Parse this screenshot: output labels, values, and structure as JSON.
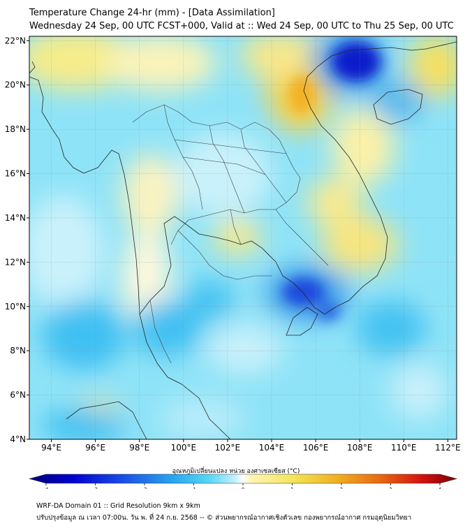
{
  "header": {
    "title": "Temperature Change 24-hr (mm) - [Data Assimilation]",
    "subtitle": "Wednesday 24 Sep, 00 UTC FCST+000, Valid at :: Wed 24 Sep, 00 UTC to Thu 25 Sep, 00 UTC"
  },
  "map": {
    "lat_ticks": [
      "22°N",
      "20°N",
      "18°N",
      "16°N",
      "14°N",
      "12°N",
      "10°N",
      "8°N",
      "6°N",
      "4°N"
    ],
    "lat_values": [
      22,
      20,
      18,
      16,
      14,
      12,
      10,
      8,
      6,
      4
    ],
    "lon_ticks": [
      "94°E",
      "96°E",
      "98°E",
      "100°E",
      "102°E",
      "104°E",
      "106°E",
      "108°E",
      "110°E",
      "112°E"
    ],
    "lon_values": [
      94,
      96,
      98,
      100,
      102,
      104,
      106,
      108,
      110,
      112
    ],
    "lat_range": [
      4,
      22.2
    ],
    "lon_range": [
      93,
      112.4
    ],
    "grid": true
  },
  "colorbar": {
    "label": "อุณหภูมิเปลี่ยนแปลง หน่วย องศาเซลเซียส (°C)",
    "ticks": [
      "-4",
      "-3",
      "-2",
      "-1",
      "0",
      "1",
      "2",
      "3",
      "4"
    ],
    "tick_values": [
      -4,
      -3,
      -2,
      -1,
      0,
      1,
      2,
      3,
      4
    ],
    "range": [
      -4,
      4
    ],
    "colors": [
      "#00007a",
      "#0000d0",
      "#1a4fe6",
      "#2aa8f0",
      "#56d7f5",
      "#bfefff",
      "#ffffff",
      "#fff6b0",
      "#f5e35a",
      "#f0b020",
      "#e86a10",
      "#d41010",
      "#7a0000"
    ]
  },
  "footer": {
    "line1": "WRF-DA Domain 01 :: Grid Resolution 9km x 9km",
    "line2": "ปรับปรุงข้อมูล ณ เวลา 07:00น. วัน พ. ที่ 24 ก.ย. 2568 -- © ส่วนพยากรณ์อากาศเชิงตัวเลข กองพยากรณ์อากาศ กรมอุตุนิยมวิทยา"
  }
}
